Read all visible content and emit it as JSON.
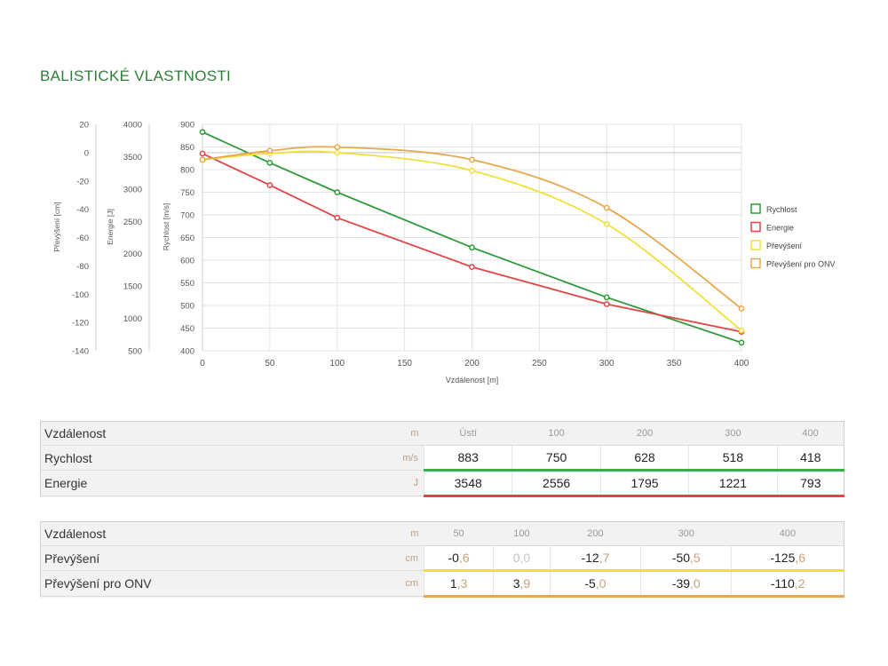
{
  "section_title": "BALISTICKÉ VLASTNOSTI",
  "chart_data": {
    "type": "line",
    "xlabel": "Vzdálenost [m]",
    "xlim": [
      0,
      400
    ],
    "xticks": [
      "0",
      "50",
      "100",
      "150",
      "200",
      "250",
      "300",
      "350",
      "400"
    ],
    "axes": [
      {
        "label": "Převýšení [cm]",
        "ticks": [
          "20",
          "0",
          "-20",
          "-40",
          "-60",
          "-80",
          "-100",
          "-120",
          "-140"
        ],
        "ylim": [
          -140,
          20
        ]
      },
      {
        "label": "Energie [J]",
        "ticks": [
          "4000",
          "3500",
          "3000",
          "2500",
          "2000",
          "1500",
          "1000",
          "500"
        ],
        "ylim": [
          500,
          4000
        ]
      },
      {
        "label": "Rychlost [m/s]",
        "ticks": [
          "900",
          "850",
          "800",
          "750",
          "700",
          "650",
          "600",
          "550",
          "500",
          "450",
          "400"
        ],
        "ylim": [
          400,
          900
        ]
      }
    ],
    "grid": true,
    "legend_position": "right",
    "series": [
      {
        "name": "Rychlost",
        "color": "#2e9a3a",
        "axis": 2,
        "x": [
          0,
          50,
          100,
          200,
          300,
          400
        ],
        "y": [
          883,
          815,
          750,
          628,
          518,
          418
        ]
      },
      {
        "name": "Energie",
        "color": "#e04545",
        "axis": 1,
        "x": [
          0,
          50,
          100,
          200,
          300,
          400
        ],
        "y": [
          3548,
          3060,
          2556,
          1795,
          1221,
          793
        ]
      },
      {
        "name": "Převýšení",
        "color": "#f2e03a",
        "axis": 0,
        "x": [
          0,
          50,
          100,
          200,
          300,
          400
        ],
        "y": [
          -5,
          -0.6,
          0.0,
          -12.7,
          -50.5,
          -125.6
        ]
      },
      {
        "name": "Převýšení pro ONV",
        "color": "#e6a84a",
        "axis": 0,
        "x": [
          0,
          50,
          100,
          200,
          300,
          400
        ],
        "y": [
          -5,
          1.3,
          3.9,
          -5.0,
          -39.0,
          -110.2
        ]
      }
    ]
  },
  "table1": {
    "header_label": "Vzdálenost",
    "header_unit": "m",
    "cols": [
      "Ústí",
      "100",
      "200",
      "300",
      "400"
    ],
    "rows": [
      {
        "label": "Rychlost",
        "unit": "m/s",
        "color": "#35b043",
        "values": [
          "883",
          "750",
          "628",
          "518",
          "418"
        ]
      },
      {
        "label": "Energie",
        "unit": "J",
        "color": "#e04545",
        "values": [
          "3548",
          "2556",
          "1795",
          "1221",
          "793"
        ]
      }
    ]
  },
  "table2": {
    "header_label": "Vzdálenost",
    "header_unit": "m",
    "cols": [
      "50",
      "100",
      "200",
      "300",
      "400"
    ],
    "rows": [
      {
        "label": "Převýšení",
        "unit": "cm",
        "color": "#f2e03a",
        "values": [
          {
            "int": "-0",
            "dec": ",6"
          },
          {
            "int": "0",
            "dec": ",0",
            "light": true
          },
          {
            "int": "-12",
            "dec": ",7"
          },
          {
            "int": "-50",
            "dec": ",5"
          },
          {
            "int": "-125",
            "dec": ",6"
          }
        ]
      },
      {
        "label": "Převýšení pro ONV",
        "unit": "cm",
        "color": "#e6a84a",
        "values": [
          {
            "int": "1",
            "dec": ",3"
          },
          {
            "int": "3",
            "dec": ",9"
          },
          {
            "int": "-5",
            "dec": ",0"
          },
          {
            "int": "-39",
            "dec": ",0"
          },
          {
            "int": "-110",
            "dec": ",2"
          }
        ]
      }
    ]
  }
}
